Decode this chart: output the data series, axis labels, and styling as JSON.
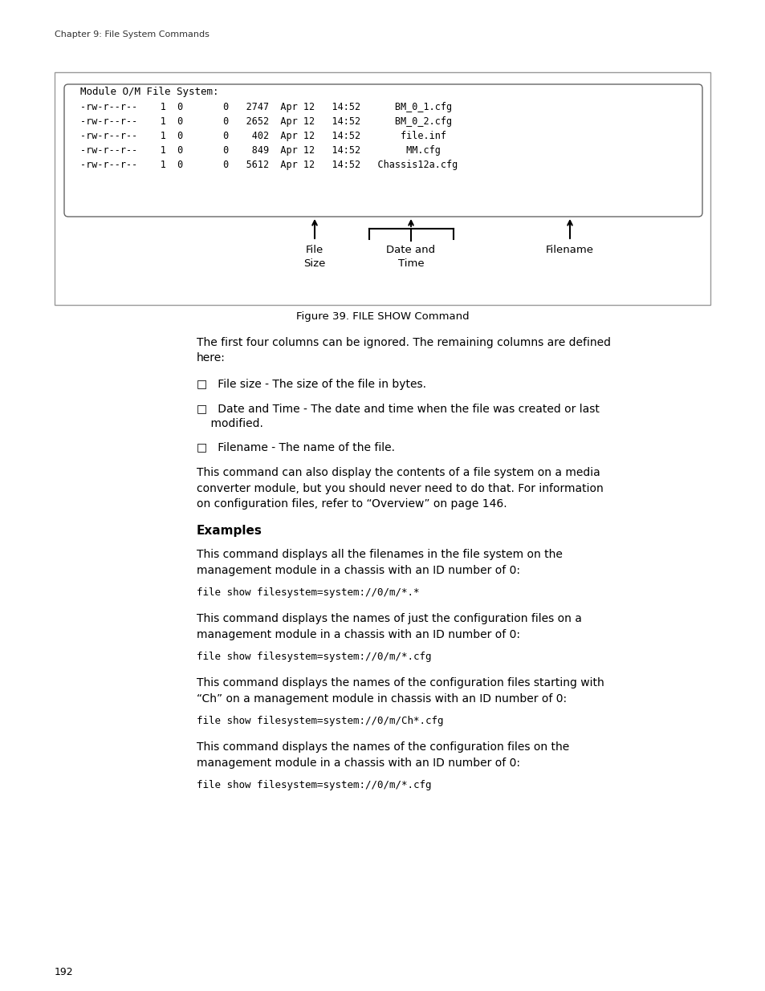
{
  "page_header": "Chapter 9: File System Commands",
  "figure_caption": "Figure 39. FILE SHOW Command",
  "page_number": "192",
  "terminal_title": "Module O/M File System:",
  "terminal_lines": [
    "-rw-r--r--    1  0       0   2747  Apr 12   14:52      BM_0_1.cfg",
    "-rw-r--r--    1  0       0   2652  Apr 12   14:52      BM_0_2.cfg",
    "-rw-r--r--    1  0       0    402  Apr 12   14:52       file.inf",
    "-rw-r--r--    1  0       0    849  Apr 12   14:52        MM.cfg",
    "-rw-r--r--    1  0       0   5612  Apr 12   14:52   Chassis12a.cfg"
  ],
  "bg_color": "#ffffff",
  "text_color": "#000000",
  "box_border_color": "#888888"
}
